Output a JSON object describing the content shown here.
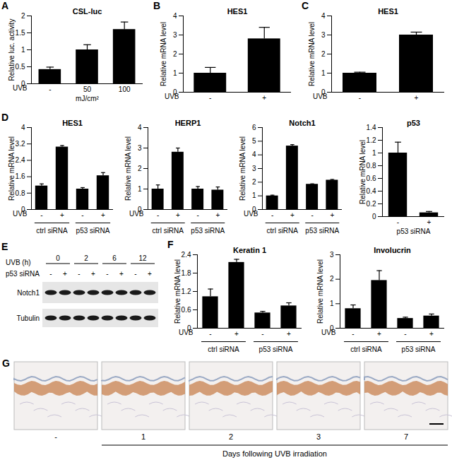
{
  "chart_data": [
    {
      "type": "bar",
      "panel": "A",
      "title": "CSL-luc",
      "categories": [
        "-",
        "50",
        "100"
      ],
      "x_row_label": "UVB",
      "xlabel": "mJ/cm²",
      "ylabel": "Relative luc. activity",
      "values": [
        0.42,
        1.0,
        1.6
      ],
      "errors": [
        0.07,
        0.15,
        0.22
      ],
      "color": "#000000",
      "ylim": [
        0,
        2
      ],
      "yticks": [
        0,
        0.5,
        1,
        1.5,
        2
      ],
      "grid": false
    },
    {
      "type": "bar",
      "panel": "B",
      "title": "HES1",
      "categories": [
        "-",
        "+"
      ],
      "x_row_label": "UVB",
      "ylabel": "Relative mRNA level",
      "values": [
        1.0,
        2.8
      ],
      "errors": [
        0.3,
        0.6
      ],
      "color": "#000000",
      "ylim": [
        0,
        4
      ],
      "yticks": [
        0,
        1,
        2,
        3,
        4
      ],
      "grid": false
    },
    {
      "type": "bar",
      "panel": "C",
      "title": "HES1",
      "categories": [
        "-",
        "+"
      ],
      "x_row_label": "UVB",
      "ylabel": "Relative mRNA level",
      "values": [
        1.0,
        3.0
      ],
      "errors": [
        0.05,
        0.15
      ],
      "color": "#000000",
      "ylim": [
        0,
        4
      ],
      "yticks": [
        0,
        1,
        2,
        3,
        4
      ],
      "grid": false
    },
    {
      "type": "bar",
      "panel": "D",
      "title": "HES1",
      "categories": [
        "-",
        "+",
        "-",
        "+"
      ],
      "groups": [
        "ctrl siRNA",
        "p53 siRNA"
      ],
      "x_row_label": "UVB",
      "ylabel": "Relative mRNA level",
      "values": [
        1.15,
        3.05,
        1.0,
        1.65
      ],
      "errors": [
        0.1,
        0.07,
        0.07,
        0.15
      ],
      "color": "#000000",
      "ylim": [
        0,
        4
      ],
      "yticks": [
        0,
        0.8,
        1.6,
        2.4,
        3.2,
        4
      ],
      "grid": false
    },
    {
      "type": "bar",
      "title": "HERP1",
      "categories": [
        "-",
        "+",
        "-",
        "+"
      ],
      "groups": [
        "ctrl siRNA",
        "p53 siRNA"
      ],
      "x_row_label": "UVB",
      "ylabel": "Relative mRNA level",
      "values": [
        1.0,
        2.8,
        1.0,
        0.95
      ],
      "errors": [
        0.2,
        0.2,
        0.12,
        0.15
      ],
      "color": "#000000",
      "ylim": [
        0,
        4
      ],
      "yticks": [
        0,
        1,
        2,
        3,
        4
      ],
      "grid": false
    },
    {
      "type": "bar",
      "title": "Notch1",
      "categories": [
        "-",
        "+",
        "-",
        "+"
      ],
      "groups": [
        "ctrl siRNA",
        "p53 siRNA"
      ],
      "x_row_label": "UVB",
      "ylabel": "Relative mRNA level",
      "values": [
        1.0,
        4.65,
        1.85,
        2.15
      ],
      "errors": [
        0.05,
        0.1,
        0.03,
        0.05
      ],
      "color": "#000000",
      "ylim": [
        0,
        6
      ],
      "yticks": [
        0,
        1,
        2,
        3,
        4,
        5,
        6
      ],
      "grid": false
    },
    {
      "type": "bar",
      "title": "p53",
      "categories": [
        "-",
        "+"
      ],
      "xlabel": "p53 siRNA",
      "ylabel": "Relative mRNA level",
      "values": [
        1.0,
        0.06
      ],
      "errors": [
        0.17,
        0.02
      ],
      "color": "#000000",
      "ylim": [
        0,
        1.4
      ],
      "yticks": [
        0,
        0.2,
        0.4,
        0.6,
        0.8,
        1,
        1.2,
        1.4
      ],
      "grid": false
    },
    {
      "type": "bar",
      "panel": "F",
      "title": "Keratin 1",
      "categories": [
        "-",
        "+",
        "-",
        "+"
      ],
      "groups": [
        "ctrl siRNA",
        "p53 siRNA"
      ],
      "x_row_label": "UVB",
      "ylabel": "Relative mRNA level",
      "values": [
        1.03,
        2.15,
        0.5,
        0.73
      ],
      "errors": [
        0.25,
        0.1,
        0.05,
        0.1
      ],
      "color": "#000000",
      "ylim": [
        0,
        2.4
      ],
      "yticks": [
        0,
        0.6,
        1.2,
        1.8,
        2.4
      ],
      "grid": false
    },
    {
      "type": "bar",
      "title": "Involucrin",
      "categories": [
        "-",
        "+",
        "-",
        "+"
      ],
      "groups": [
        "ctrl siRNA",
        "p53 siRNA"
      ],
      "x_row_label": "UVB",
      "ylabel": "Relative mRNA level",
      "values": [
        0.8,
        1.95,
        0.4,
        0.5
      ],
      "errors": [
        0.15,
        0.4,
        0.05,
        0.08
      ],
      "color": "#000000",
      "ylim": [
        0,
        3
      ],
      "yticks": [
        0,
        1,
        2,
        3
      ],
      "grid": false
    }
  ],
  "blot": {
    "panel": "E",
    "time_label": "UVB (h)",
    "times": [
      "0",
      "2",
      "6",
      "12"
    ],
    "sirna_label": "p53 siRNA",
    "sirna": [
      "-",
      "+"
    ],
    "rows": [
      "Notch1",
      "Tubulin"
    ]
  },
  "histology": {
    "panel": "G",
    "labels": [
      "-",
      "1",
      "2",
      "3",
      "7"
    ],
    "caption": "Days following UVB irradiation"
  }
}
